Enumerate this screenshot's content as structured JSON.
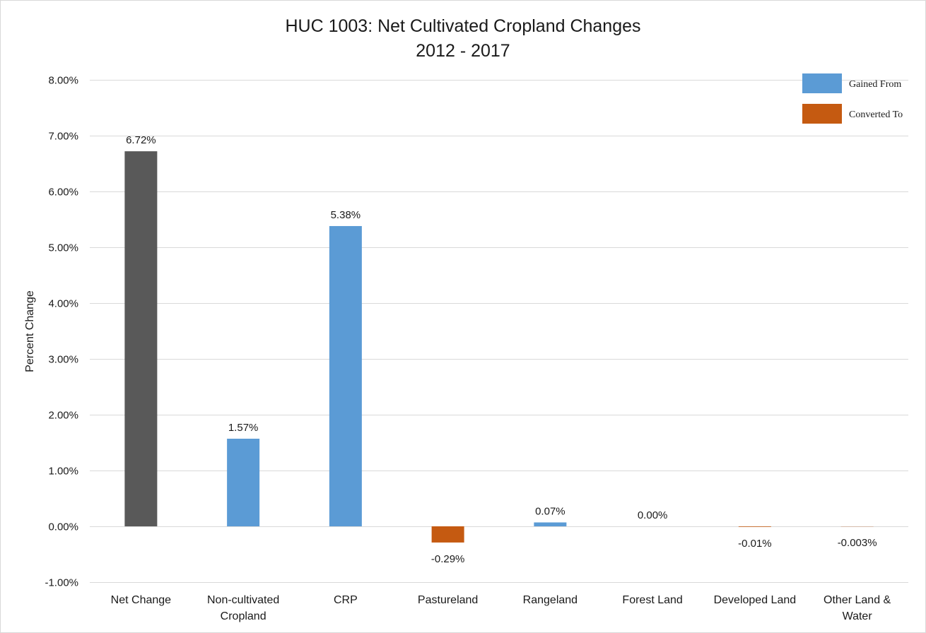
{
  "chart_data": {
    "type": "bar",
    "title_line1": "HUC 1003: Net Cultivated Cropland Changes",
    "title_line2": "2012 - 2017",
    "ylabel": "Percent Change",
    "ylim": [
      -1,
      8
    ],
    "yticks": [
      {
        "value": 8,
        "label": "8.00%"
      },
      {
        "value": 7,
        "label": "7.00%"
      },
      {
        "value": 6,
        "label": "6.00%"
      },
      {
        "value": 5,
        "label": "5.00%"
      },
      {
        "value": 4,
        "label": "4.00%"
      },
      {
        "value": 3,
        "label": "3.00%"
      },
      {
        "value": 2,
        "label": "2.00%"
      },
      {
        "value": 1,
        "label": "1.00%"
      },
      {
        "value": 0,
        "label": "0.00%"
      },
      {
        "value": -1,
        "label": "-1.00%"
      }
    ],
    "grid": true,
    "legend_position": "top-right",
    "legend": [
      {
        "label": "Gained From",
        "color": "#5b9bd5"
      },
      {
        "label": "Converted To",
        "color": "#c55a11"
      }
    ],
    "categories": [
      {
        "lines": [
          "Net Change"
        ],
        "value": 6.72,
        "label": "6.72%",
        "color": "#595959"
      },
      {
        "lines": [
          "Non-cultivated",
          "Cropland"
        ],
        "value": 1.57,
        "label": "1.57%",
        "color": "#5b9bd5"
      },
      {
        "lines": [
          "CRP"
        ],
        "value": 5.38,
        "label": "5.38%",
        "color": "#5b9bd5"
      },
      {
        "lines": [
          "Pastureland"
        ],
        "value": -0.29,
        "label": "-0.29%",
        "color": "#c55a11"
      },
      {
        "lines": [
          "Rangeland"
        ],
        "value": 0.07,
        "label": "0.07%",
        "color": "#5b9bd5"
      },
      {
        "lines": [
          "Forest Land"
        ],
        "value": 0.0,
        "label": "0.00%",
        "color": "#5b9bd5"
      },
      {
        "lines": [
          "Developed Land"
        ],
        "value": -0.01,
        "label": "-0.01%",
        "color": "#c55a11"
      },
      {
        "lines": [
          "Other Land &",
          "Water"
        ],
        "value": -0.003,
        "label": "-0.003%",
        "color": "#c55a11"
      }
    ]
  }
}
